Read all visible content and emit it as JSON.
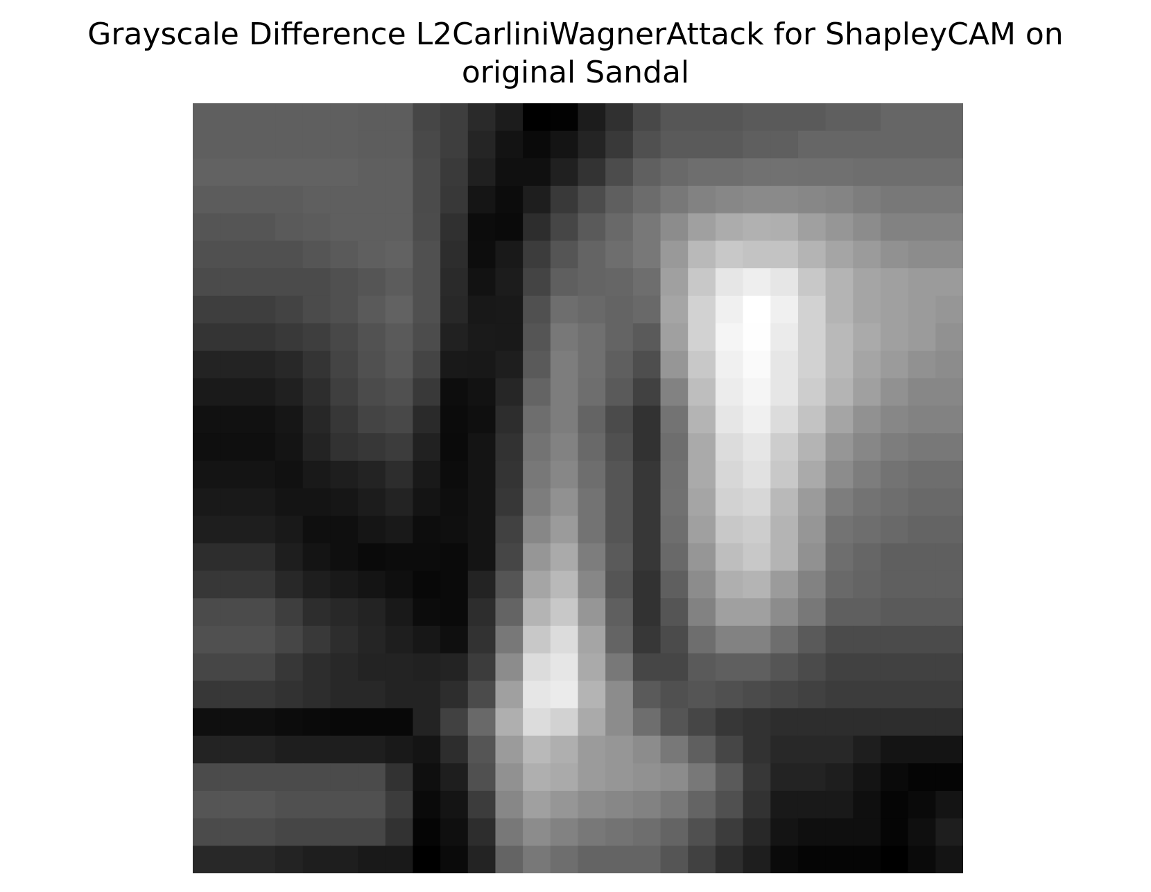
{
  "chart_data": {
    "type": "heatmap",
    "title_lines": [
      "Grayscale Difference L2CarliniWagnerAttack for ShapleyCAM on",
      "original Sandal"
    ],
    "colormap": "gray",
    "axes_visible": false,
    "rows": 28,
    "cols": 28,
    "values": [
      [
        95,
        95,
        95,
        95,
        95,
        95,
        93,
        93,
        70,
        62,
        42,
        28,
        0,
        2,
        28,
        48,
        72,
        86,
        86,
        86,
        90,
        90,
        90,
        95,
        95,
        102,
        102,
        102
      ],
      [
        95,
        95,
        95,
        95,
        95,
        95,
        93,
        93,
        73,
        62,
        37,
        19,
        10,
        20,
        36,
        57,
        80,
        90,
        90,
        90,
        95,
        95,
        102,
        102,
        102,
        102,
        102,
        102
      ],
      [
        98,
        98,
        98,
        98,
        98,
        98,
        95,
        95,
        75,
        58,
        32,
        16,
        16,
        32,
        51,
        76,
        96,
        105,
        110,
        110,
        113,
        113,
        112,
        112,
        110,
        110,
        110,
        110
      ],
      [
        92,
        92,
        92,
        92,
        95,
        95,
        95,
        95,
        75,
        56,
        21,
        12,
        30,
        57,
        76,
        95,
        108,
        120,
        130,
        135,
        138,
        138,
        135,
        132,
        125,
        120,
        120,
        120
      ],
      [
        85,
        85,
        85,
        90,
        92,
        95,
        95,
        95,
        76,
        48,
        12,
        10,
        45,
        70,
        90,
        105,
        120,
        140,
        160,
        172,
        177,
        175,
        160,
        150,
        140,
        130,
        130,
        130
      ],
      [
        80,
        80,
        80,
        80,
        85,
        90,
        95,
        98,
        80,
        45,
        13,
        25,
        60,
        85,
        100,
        110,
        120,
        153,
        185,
        200,
        195,
        195,
        180,
        165,
        155,
        145,
        140,
        140
      ],
      [
        75,
        75,
        75,
        75,
        75,
        80,
        85,
        92,
        80,
        42,
        18,
        28,
        68,
        95,
        100,
        102,
        110,
        160,
        200,
        230,
        238,
        230,
        200,
        180,
        165,
        160,
        155,
        155
      ],
      [
        62,
        62,
        62,
        67,
        75,
        80,
        90,
        98,
        80,
        40,
        24,
        25,
        80,
        110,
        105,
        100,
        105,
        165,
        210,
        240,
        255,
        240,
        210,
        180,
        165,
        160,
        155,
        150
      ],
      [
        52,
        52,
        52,
        57,
        62,
        72,
        82,
        90,
        76,
        33,
        26,
        25,
        85,
        120,
        112,
        100,
        90,
        160,
        210,
        245,
        254,
        235,
        210,
        185,
        170,
        160,
        155,
        145
      ],
      [
        35,
        35,
        35,
        40,
        52,
        68,
        80,
        88,
        68,
        25,
        24,
        30,
        90,
        125,
        112,
        95,
        78,
        150,
        200,
        240,
        250,
        230,
        210,
        185,
        165,
        155,
        145,
        140
      ],
      [
        26,
        26,
        26,
        32,
        45,
        63,
        75,
        80,
        57,
        13,
        18,
        38,
        100,
        125,
        110,
        90,
        65,
        130,
        190,
        236,
        245,
        230,
        205,
        180,
        160,
        145,
        135,
        135
      ],
      [
        17,
        17,
        17,
        22,
        39,
        55,
        68,
        72,
        42,
        11,
        15,
        45,
        110,
        125,
        100,
        75,
        50,
        115,
        180,
        230,
        240,
        220,
        195,
        165,
        145,
        135,
        130,
        130
      ],
      [
        15,
        15,
        15,
        20,
        35,
        50,
        55,
        60,
        33,
        10,
        20,
        50,
        115,
        130,
        105,
        80,
        50,
        110,
        170,
        220,
        230,
        205,
        180,
        150,
        135,
        125,
        120,
        120
      ],
      [
        20,
        20,
        20,
        17,
        25,
        30,
        35,
        45,
        25,
        12,
        20,
        52,
        120,
        135,
        110,
        85,
        55,
        112,
        170,
        215,
        225,
        200,
        170,
        140,
        125,
        115,
        110,
        110
      ],
      [
        25,
        25,
        25,
        20,
        20,
        22,
        28,
        35,
        20,
        14,
        20,
        55,
        125,
        145,
        115,
        85,
        55,
        113,
        165,
        210,
        215,
        185,
        155,
        125,
        115,
        110,
        105,
        105
      ],
      [
        30,
        30,
        30,
        25,
        15,
        15,
        21,
        25,
        13,
        15,
        20,
        65,
        135,
        155,
        115,
        85,
        55,
        110,
        160,
        200,
        205,
        180,
        150,
        115,
        110,
        105,
        100,
        100
      ],
      [
        45,
        45,
        45,
        30,
        20,
        15,
        10,
        12,
        12,
        10,
        20,
        70,
        150,
        170,
        125,
        90,
        55,
        105,
        150,
        190,
        200,
        180,
        145,
        110,
        102,
        95,
        95,
        95
      ],
      [
        55,
        55,
        55,
        40,
        30,
        25,
        20,
        15,
        8,
        10,
        35,
        85,
        165,
        185,
        135,
        85,
        50,
        95,
        140,
        175,
        180,
        155,
        130,
        105,
        100,
        95,
        95,
        95
      ],
      [
        75,
        75,
        75,
        62,
        45,
        40,
        35,
        25,
        12,
        10,
        45,
        100,
        180,
        200,
        150,
        95,
        50,
        85,
        130,
        160,
        160,
        140,
        120,
        95,
        95,
        90,
        90,
        90
      ],
      [
        80,
        80,
        80,
        70,
        57,
        45,
        37,
        30,
        23,
        15,
        50,
        120,
        200,
        220,
        165,
        100,
        55,
        75,
        110,
        130,
        130,
        110,
        90,
        75,
        75,
        75,
        75,
        75
      ],
      [
        70,
        70,
        70,
        55,
        45,
        40,
        35,
        35,
        33,
        35,
        60,
        140,
        220,
        230,
        170,
        120,
        70,
        70,
        90,
        95,
        95,
        85,
        75,
        65,
        65,
        65,
        65,
        65
      ],
      [
        55,
        55,
        55,
        50,
        45,
        40,
        40,
        35,
        35,
        45,
        75,
        160,
        230,
        235,
        180,
        140,
        90,
        80,
        85,
        80,
        75,
        70,
        65,
        60,
        60,
        60,
        60,
        60
      ],
      [
        15,
        15,
        15,
        12,
        10,
        8,
        8,
        8,
        35,
        65,
        105,
        175,
        220,
        210,
        170,
        140,
        110,
        85,
        70,
        55,
        50,
        45,
        45,
        45,
        45,
        45,
        45,
        45
      ],
      [
        35,
        35,
        35,
        30,
        30,
        30,
        30,
        25,
        20,
        45,
        85,
        155,
        185,
        175,
        155,
        150,
        140,
        120,
        95,
        70,
        50,
        40,
        40,
        40,
        30,
        20,
        20,
        20
      ],
      [
        75,
        75,
        75,
        75,
        75,
        75,
        75,
        50,
        15,
        30,
        80,
        145,
        175,
        170,
        155,
        150,
        145,
        140,
        120,
        90,
        55,
        35,
        35,
        30,
        20,
        10,
        5,
        5
      ],
      [
        85,
        85,
        85,
        80,
        80,
        80,
        80,
        60,
        10,
        20,
        60,
        135,
        160,
        150,
        140,
        135,
        130,
        120,
        100,
        80,
        50,
        25,
        25,
        25,
        15,
        5,
        10,
        20
      ],
      [
        75,
        75,
        75,
        70,
        70,
        70,
        70,
        50,
        5,
        15,
        45,
        120,
        140,
        130,
        120,
        115,
        110,
        100,
        80,
        60,
        40,
        20,
        15,
        15,
        15,
        5,
        15,
        30
      ],
      [
        40,
        40,
        40,
        35,
        30,
        30,
        25,
        25,
        0,
        10,
        35,
        100,
        120,
        110,
        100,
        100,
        100,
        85,
        65,
        45,
        30,
        10,
        5,
        5,
        5,
        0,
        10,
        20
      ]
    ]
  }
}
